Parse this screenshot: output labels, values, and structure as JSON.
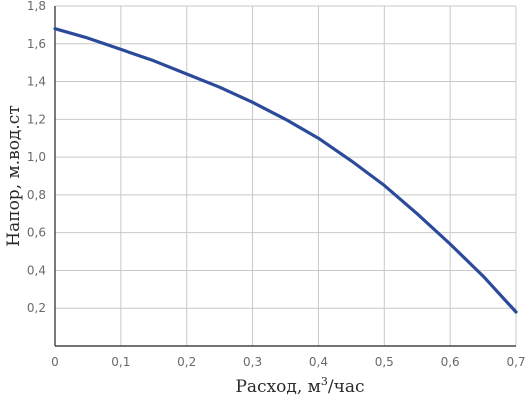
{
  "chart_data": {
    "type": "line",
    "xlabel_main": "Расход, м",
    "xlabel_sup": "3",
    "xlabel_tail": "/час",
    "ylabel": "Напор, м.вод.ст",
    "xlim": [
      0,
      0.7
    ],
    "ylim": [
      0,
      1.8
    ],
    "grid": true,
    "x_ticks": [
      "0",
      "0,1",
      "0,2",
      "0,3",
      "0,4",
      "0,5",
      "0,6",
      "0,7"
    ],
    "y_ticks": [
      "0,2",
      "0,4",
      "0,6",
      "0,8",
      "1,0",
      "1,2",
      "1,4",
      "1,6",
      "1,8"
    ],
    "series": [
      {
        "color": "#2b4a9a",
        "x": [
          0,
          0.05,
          0.1,
          0.15,
          0.2,
          0.25,
          0.3,
          0.35,
          0.4,
          0.45,
          0.5,
          0.55,
          0.6,
          0.65,
          0.7
        ],
        "y": [
          1.68,
          1.63,
          1.57,
          1.51,
          1.44,
          1.37,
          1.29,
          1.2,
          1.1,
          0.98,
          0.85,
          0.7,
          0.54,
          0.37,
          0.18
        ]
      }
    ]
  }
}
